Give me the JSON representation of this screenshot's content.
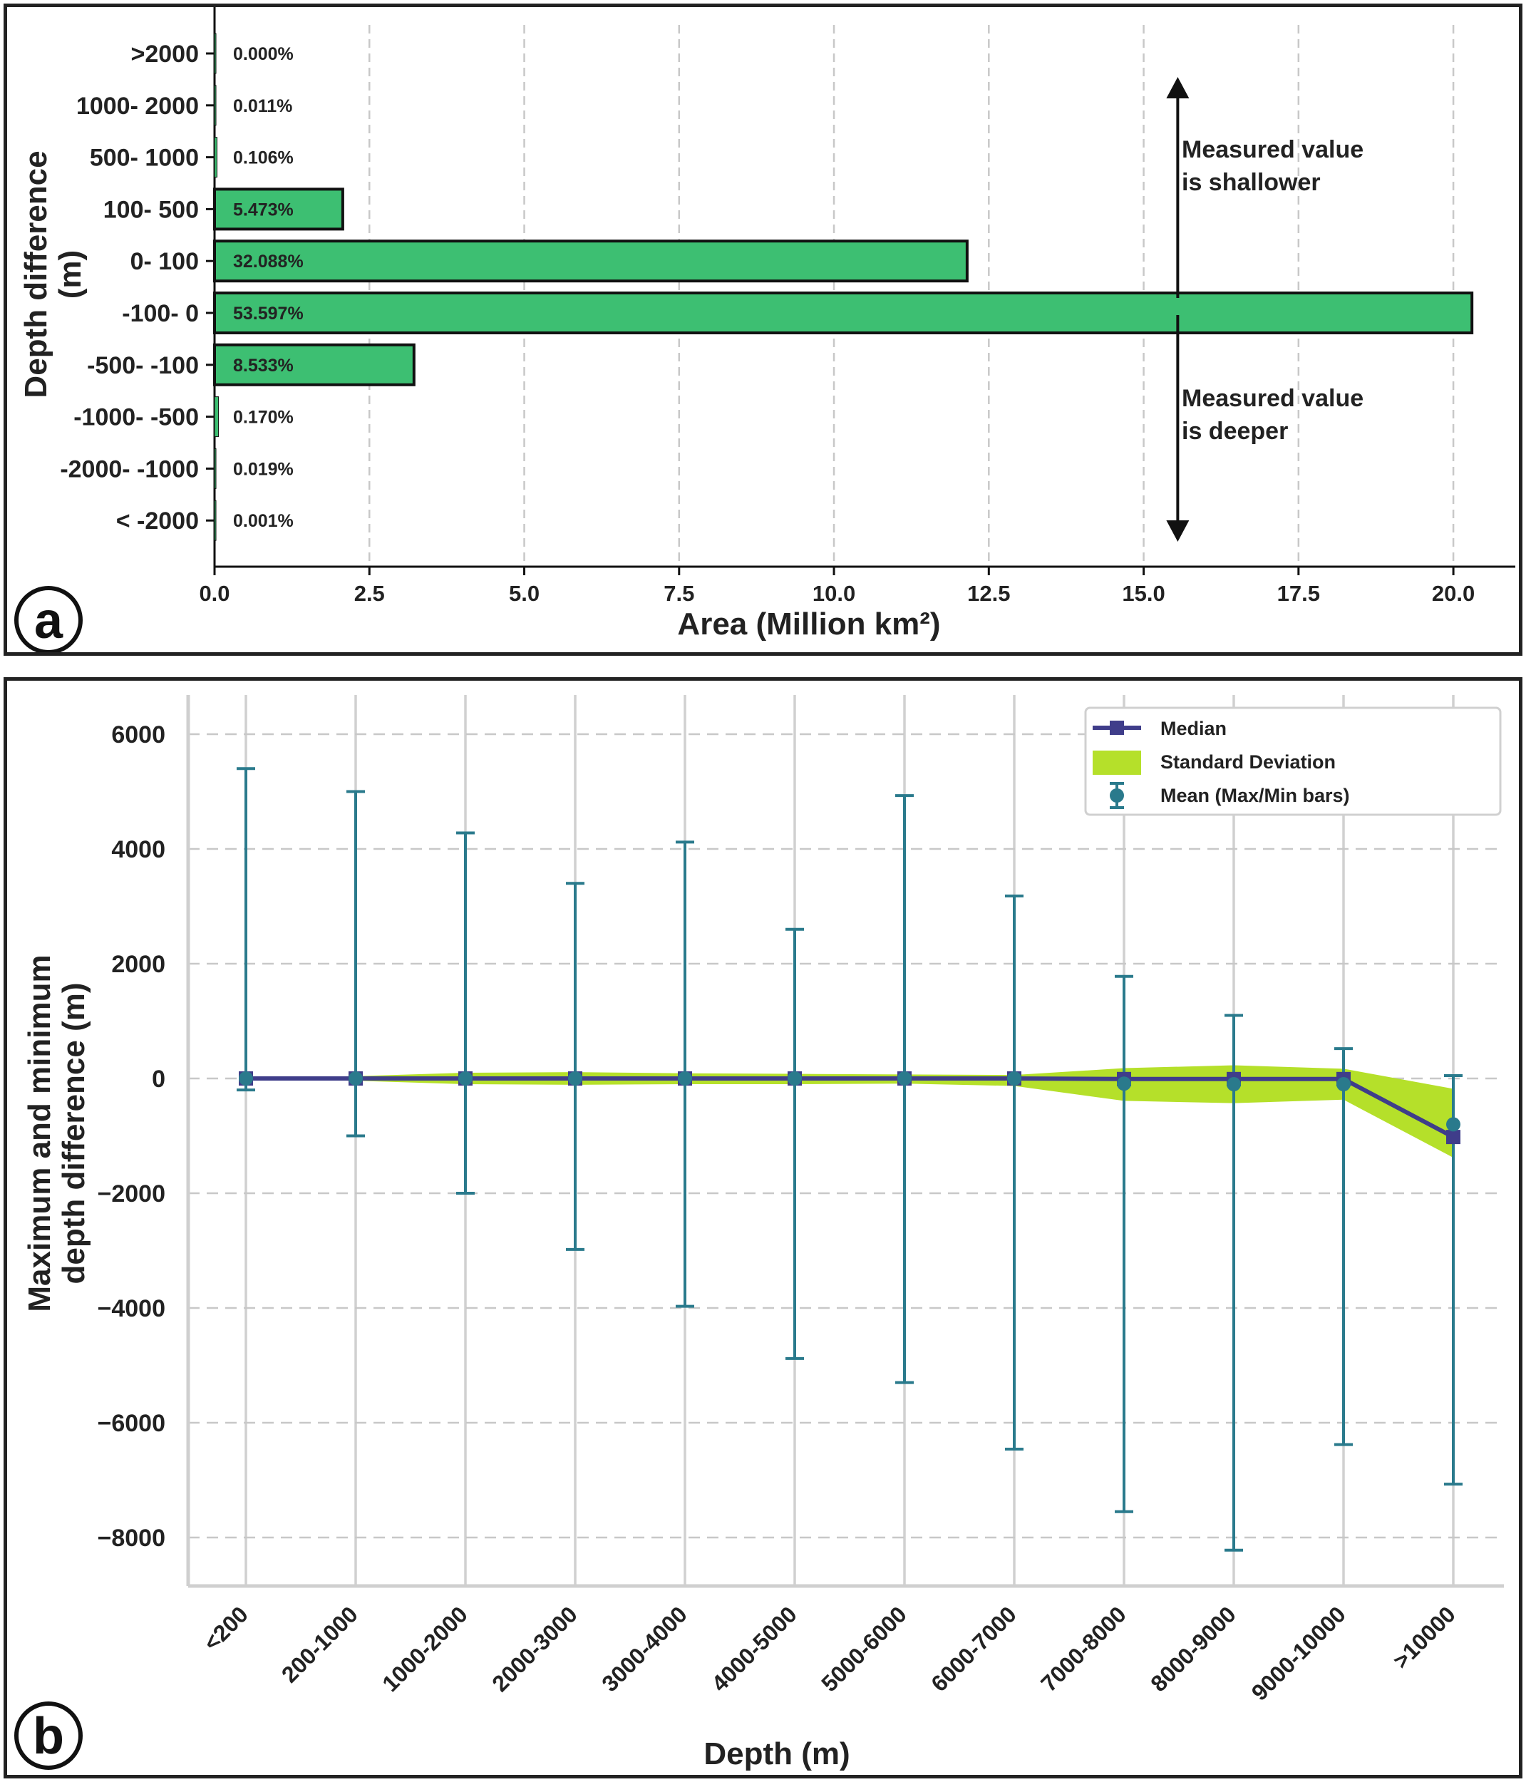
{
  "chart_data": [
    {
      "panel_label": "a",
      "type": "bar",
      "orientation": "horizontal",
      "ylabel": "Depth difference\n(m)",
      "xlabel": "Area (Million km²)",
      "xlim": [
        0,
        21
      ],
      "xticks": [
        "0.0",
        "2.5",
        "5.0",
        "7.5",
        "10.0",
        "12.5",
        "15.0",
        "17.5",
        "20.0"
      ],
      "categories": [
        ">2000",
        "1000- 2000",
        "500- 1000",
        "100- 500",
        "0- 100",
        "-100- 0",
        "-500- -100",
        "-1000- -500",
        "-2000- -1000",
        "< -2000"
      ],
      "values": [
        0.0,
        0.004,
        0.04,
        2.07,
        12.15,
        20.3,
        3.22,
        0.064,
        0.007,
        0.0004
      ],
      "labels": [
        "0.000%",
        "0.011%",
        "0.106%",
        "5.473%",
        "32.088%",
        "53.597%",
        "8.533%",
        "0.170%",
        "0.019%",
        "0.001%"
      ],
      "bar_color": "#3dbf72",
      "arrow_x": 15.55,
      "annotation_up": [
        "Measured value",
        "is shallower"
      ],
      "annotation_down": [
        "Measured value",
        "is deeper"
      ],
      "grid": true
    },
    {
      "panel_label": "b",
      "type": "line",
      "ylabel": "Maximum and minimum\ndepth difference (m)",
      "xlabel": "Depth (m)",
      "categories": [
        "<200",
        "200-1000",
        "1000-2000",
        "2000-3000",
        "3000-4000",
        "4000-5000",
        "5000-6000",
        "6000-7000",
        "7000-8000",
        "8000-9000",
        "9000-10000",
        ">10000"
      ],
      "ylim": [
        -9000,
        6000
      ],
      "yticks": [
        "6000",
        "4000",
        "2000",
        "0",
        "−2000",
        "−4000",
        "−6000",
        "−8000"
      ],
      "series": [
        {
          "name": "Median",
          "values": [
            0,
            0,
            0,
            0,
            0,
            0,
            0,
            0,
            -10,
            -10,
            -10,
            -1020
          ],
          "color": "#3f3d8a"
        },
        {
          "name": "Standard Deviation",
          "upper": [
            10,
            40,
            100,
            110,
            90,
            80,
            70,
            60,
            180,
            230,
            170,
            -180
          ],
          "lower": [
            -10,
            -40,
            -100,
            -110,
            -100,
            -100,
            -90,
            -130,
            -390,
            -430,
            -370,
            -1380
          ],
          "color": "#b5e02a"
        },
        {
          "name": "Mean (Max/Min bars)",
          "values": [
            0,
            0,
            0,
            0,
            0,
            0,
            0,
            0,
            -90,
            -100,
            -100,
            -800
          ],
          "max": [
            5400,
            5000,
            4280,
            3400,
            4120,
            2600,
            4930,
            3180,
            1780,
            1100,
            520,
            50
          ],
          "min": [
            -200,
            -1000,
            -2000,
            -2980,
            -3970,
            -4880,
            -5300,
            -6460,
            -7550,
            -8220,
            -6380,
            -7070
          ],
          "color": "#2a7a8c"
        }
      ],
      "legend_location": "top-right",
      "grid": true
    }
  ]
}
